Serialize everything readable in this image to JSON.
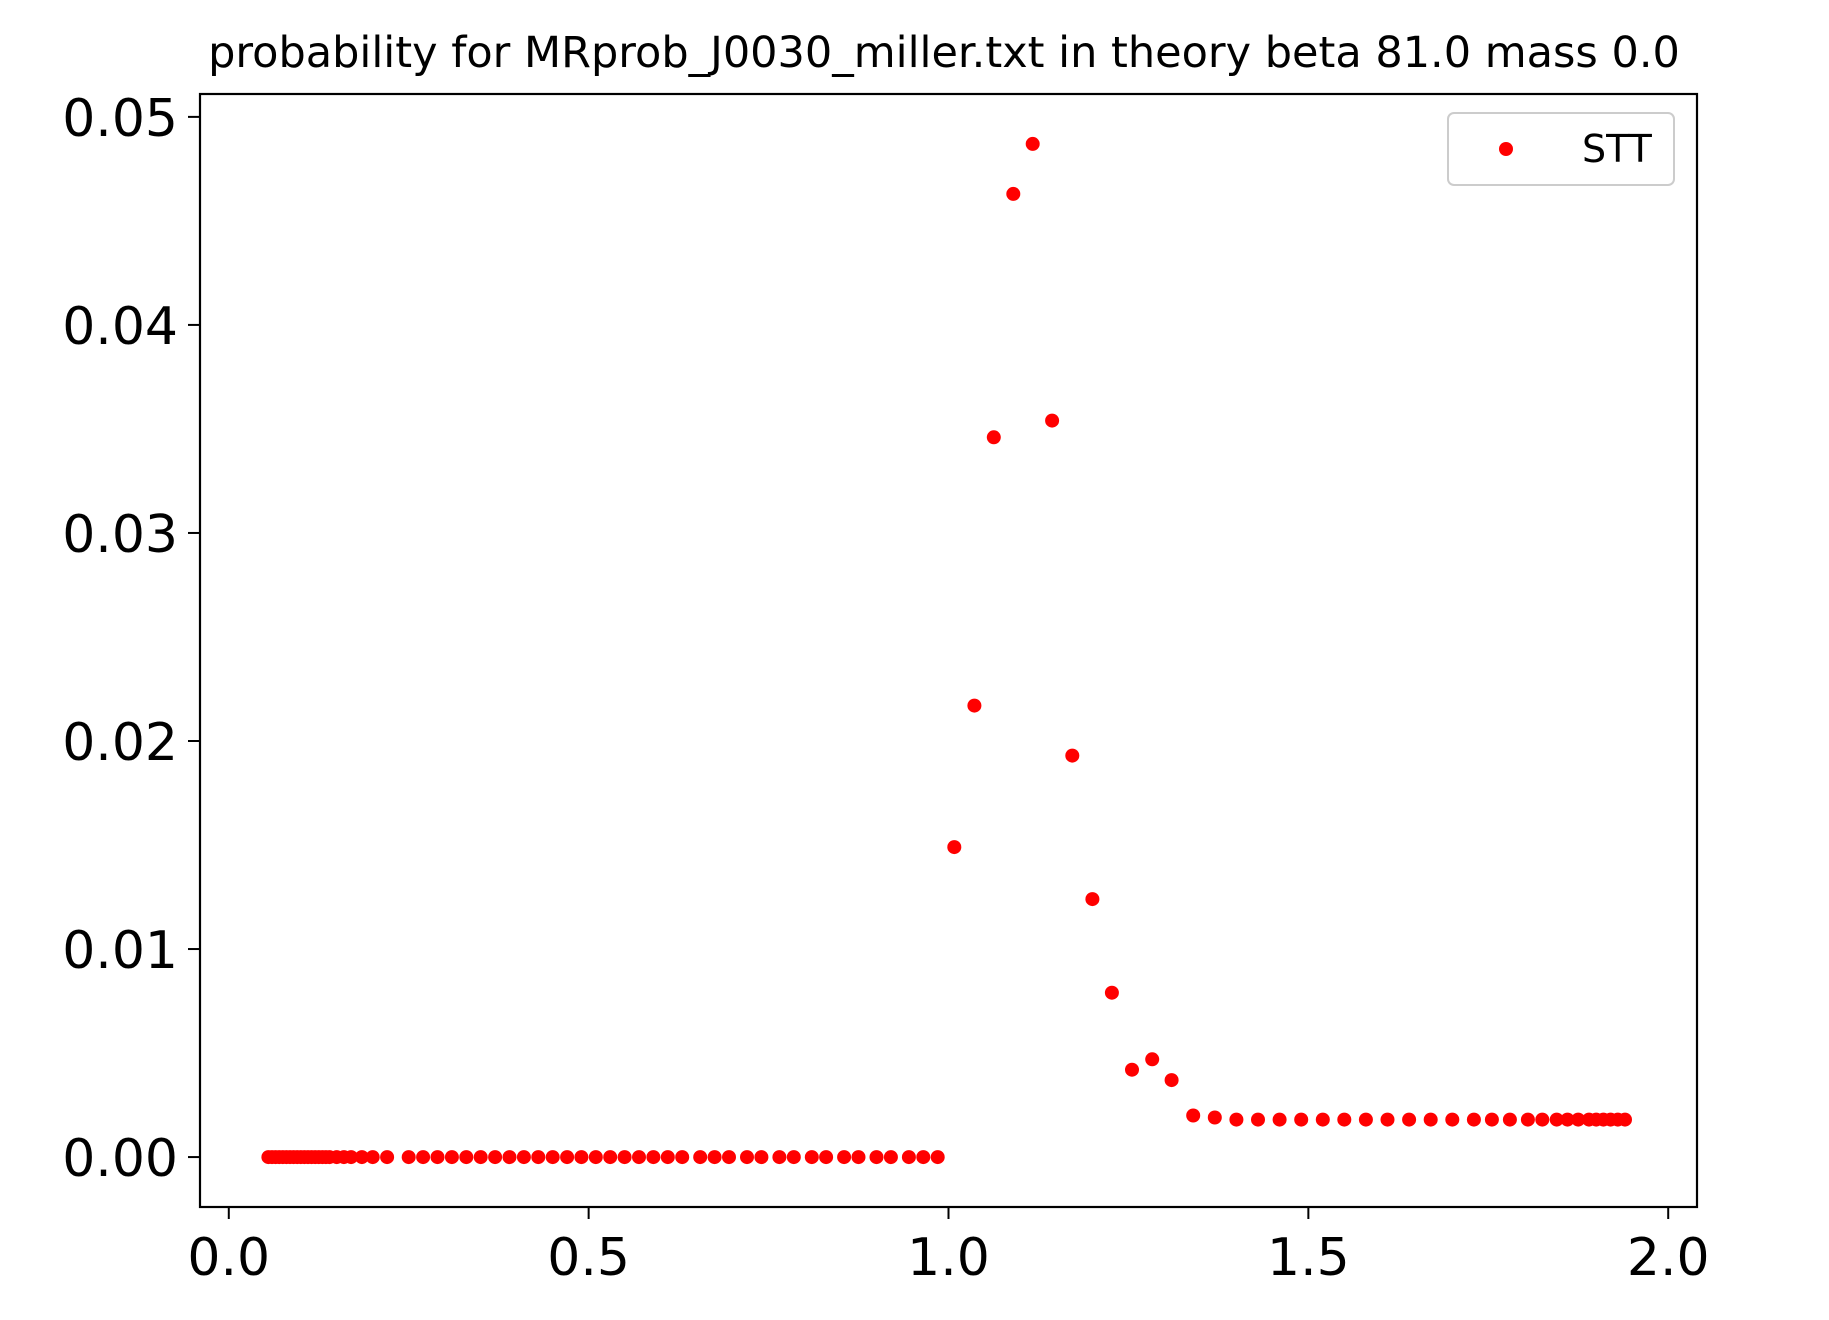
{
  "chart_data": {
    "type": "scatter",
    "title": "probability for MRprob_J0030_miller.txt in theory beta 81.0 mass 0.0",
    "xlabel": "",
    "ylabel": "",
    "xlim": [
      -0.04,
      2.04
    ],
    "ylim": [
      -0.0024,
      0.0511
    ],
    "xticks": [
      0.0,
      0.5,
      1.0,
      1.5,
      2.0
    ],
    "xtick_labels": [
      "0.0",
      "0.5",
      "1.0",
      "1.5",
      "2.0"
    ],
    "yticks": [
      0.0,
      0.01,
      0.02,
      0.03,
      0.04,
      0.05
    ],
    "ytick_labels": [
      "0.00",
      "0.01",
      "0.02",
      "0.03",
      "0.04",
      "0.05"
    ],
    "grid": false,
    "legend_position": "top-right",
    "series": [
      {
        "name": "STT",
        "color": "#ff0000",
        "marker": "circle",
        "x": [
          0.055,
          0.06,
          0.065,
          0.07,
          0.075,
          0.08,
          0.085,
          0.09,
          0.095,
          0.1,
          0.105,
          0.11,
          0.115,
          0.12,
          0.125,
          0.13,
          0.135,
          0.14,
          0.15,
          0.16,
          0.17,
          0.185,
          0.2,
          0.22,
          0.25,
          0.27,
          0.29,
          0.31,
          0.33,
          0.35,
          0.37,
          0.39,
          0.41,
          0.43,
          0.45,
          0.47,
          0.49,
          0.51,
          0.53,
          0.55,
          0.57,
          0.59,
          0.61,
          0.63,
          0.655,
          0.675,
          0.695,
          0.72,
          0.74,
          0.765,
          0.785,
          0.81,
          0.83,
          0.855,
          0.875,
          0.9,
          0.92,
          0.945,
          0.965,
          0.985,
          1.008,
          1.036,
          1.063,
          1.09,
          1.117,
          1.144,
          1.172,
          1.2,
          1.227,
          1.255,
          1.283,
          1.31,
          1.34,
          1.37,
          1.4,
          1.43,
          1.46,
          1.49,
          1.52,
          1.55,
          1.58,
          1.61,
          1.64,
          1.67,
          1.7,
          1.73,
          1.755,
          1.78,
          1.805,
          1.825,
          1.845,
          1.86,
          1.875,
          1.89,
          1.9,
          1.91,
          1.92,
          1.93,
          1.94
        ],
        "y": [
          0,
          0,
          0,
          0,
          0,
          0,
          0,
          0,
          0,
          0,
          0,
          0,
          0,
          0,
          0,
          0,
          0,
          0,
          0,
          0,
          0,
          0,
          0,
          0,
          0,
          0,
          0,
          0,
          0,
          0,
          0,
          0,
          0,
          0,
          0,
          0,
          0,
          0,
          0,
          0,
          0,
          0,
          0,
          0,
          0,
          0,
          0,
          0,
          0,
          0,
          0,
          0,
          0,
          0,
          0,
          0,
          0,
          0,
          0,
          0,
          0.0149,
          0.0217,
          0.0346,
          0.0463,
          0.0487,
          0.0354,
          0.0193,
          0.0124,
          0.0079,
          0.0042,
          0.0047,
          0.0037,
          0.002,
          0.0019,
          0.0018,
          0.0018,
          0.0018,
          0.0018,
          0.0018,
          0.0018,
          0.0018,
          0.0018,
          0.0018,
          0.0018,
          0.0018,
          0.0018,
          0.0018,
          0.0018,
          0.0018,
          0.0018,
          0.0018,
          0.0018,
          0.0018,
          0.0018,
          0.0018,
          0.0018,
          0.0018,
          0.0018,
          0.0018
        ]
      }
    ]
  }
}
